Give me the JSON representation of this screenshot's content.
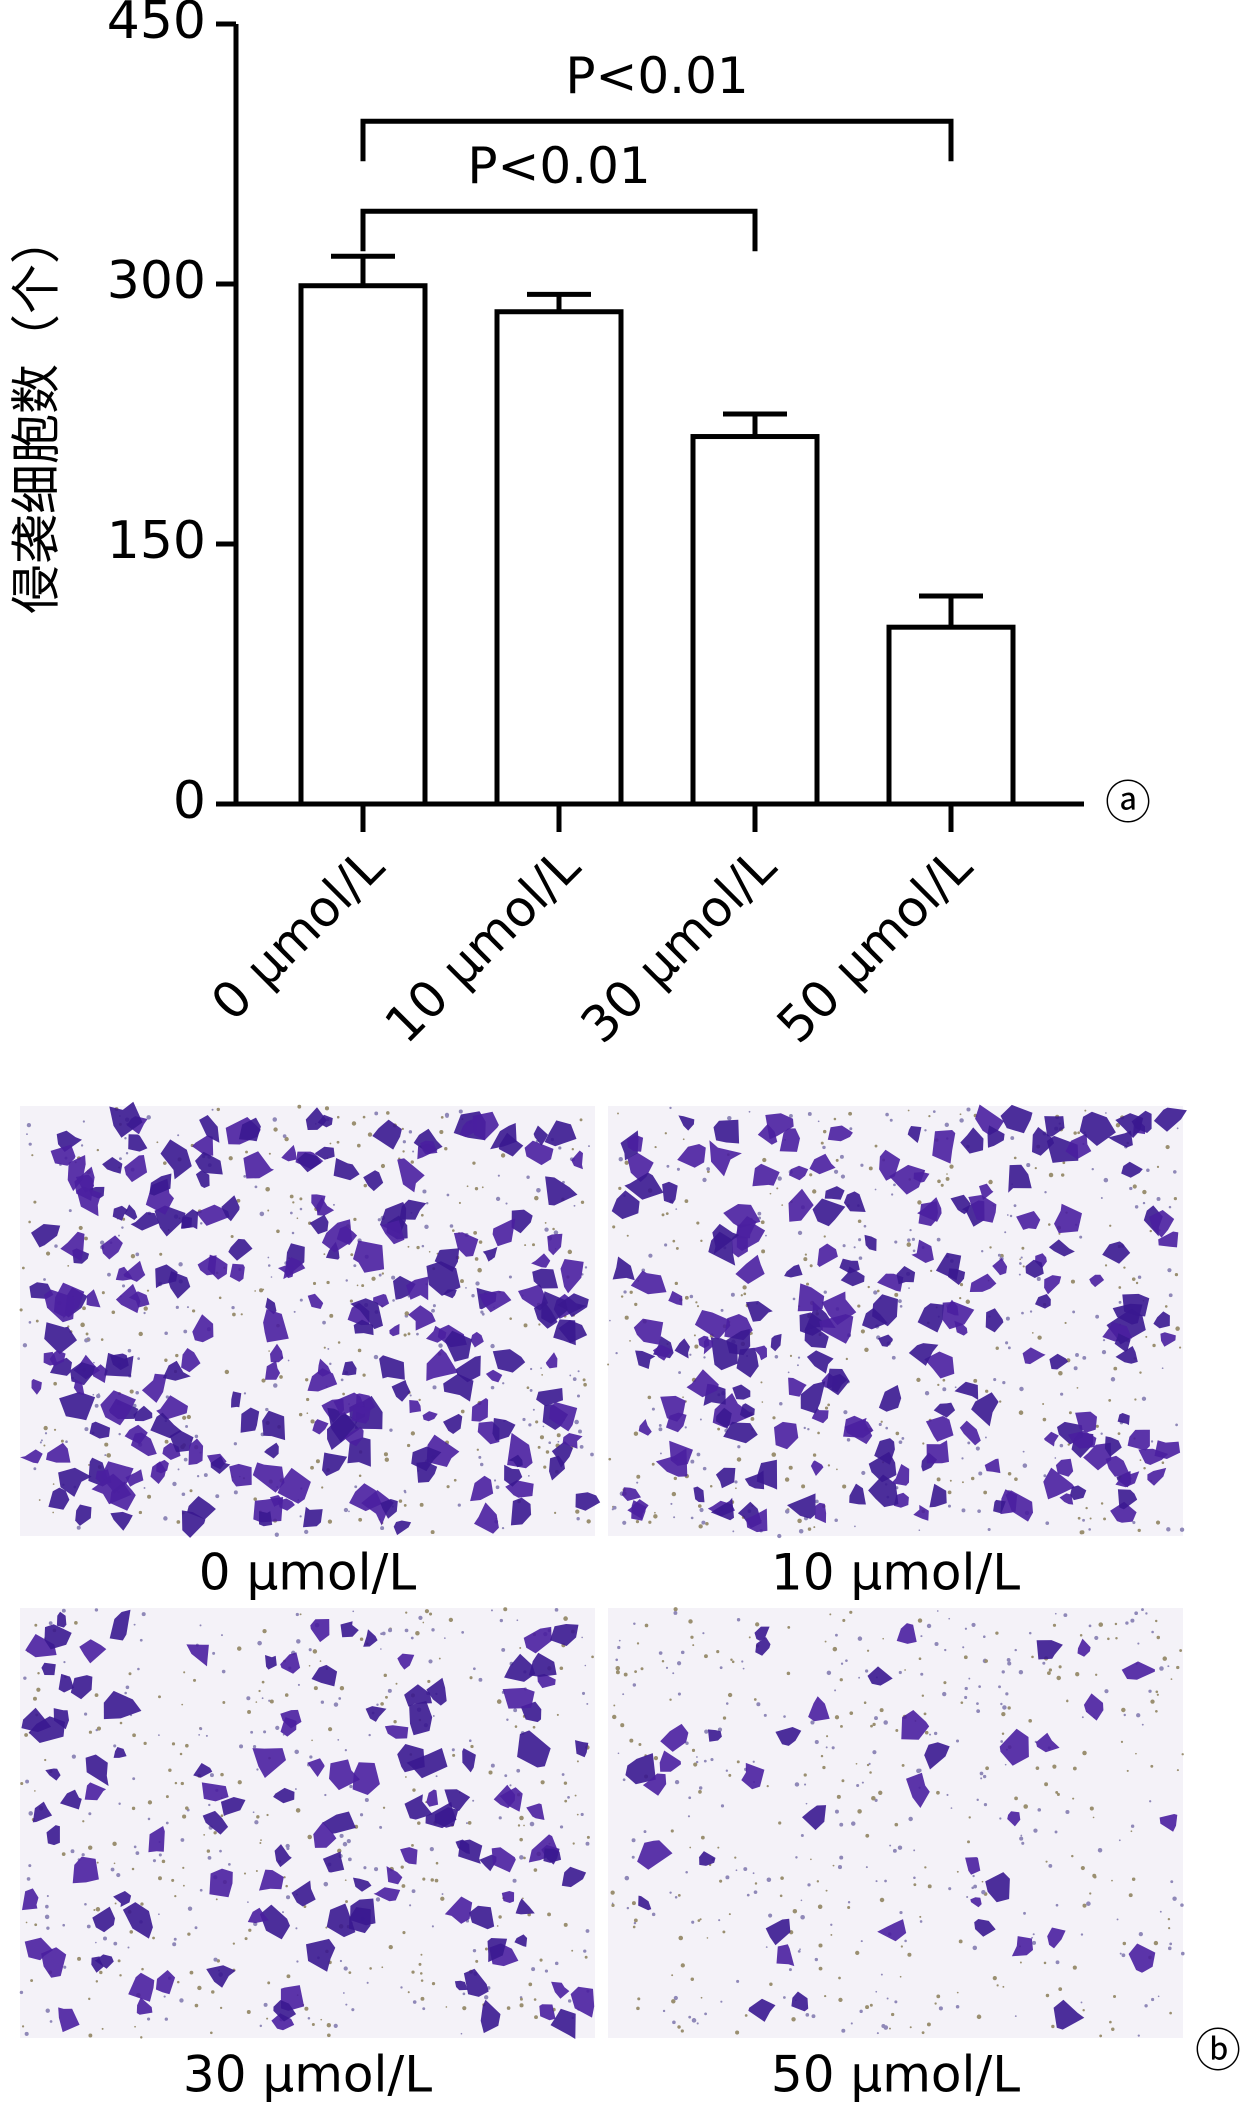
{
  "chart_data": {
    "type": "bar",
    "ylabel": "侵袭细胞数（个）",
    "categories": [
      "0 μmol/L",
      "10 μmol/L",
      "30 μmol/L",
      "50 μmol/L"
    ],
    "values": [
      299,
      284,
      212,
      102
    ],
    "errors": [
      17,
      10,
      13,
      18
    ],
    "color": "#ffffff",
    "edgecolor": "#000000",
    "ylim": [
      0,
      450
    ],
    "yticks": [
      0,
      150,
      300,
      450
    ],
    "panel_label": "ⓐ",
    "annotations": [
      {
        "text": "P<0.01",
        "from": 0,
        "to": 3
      },
      {
        "text": "P<0.01",
        "from": 0,
        "to": 2
      }
    ]
  },
  "images": {
    "panel_label": "ⓑ",
    "captions": [
      "0 μmol/L",
      "10 μmol/L",
      "30 μmol/L",
      "50 μmol/L"
    ]
  }
}
